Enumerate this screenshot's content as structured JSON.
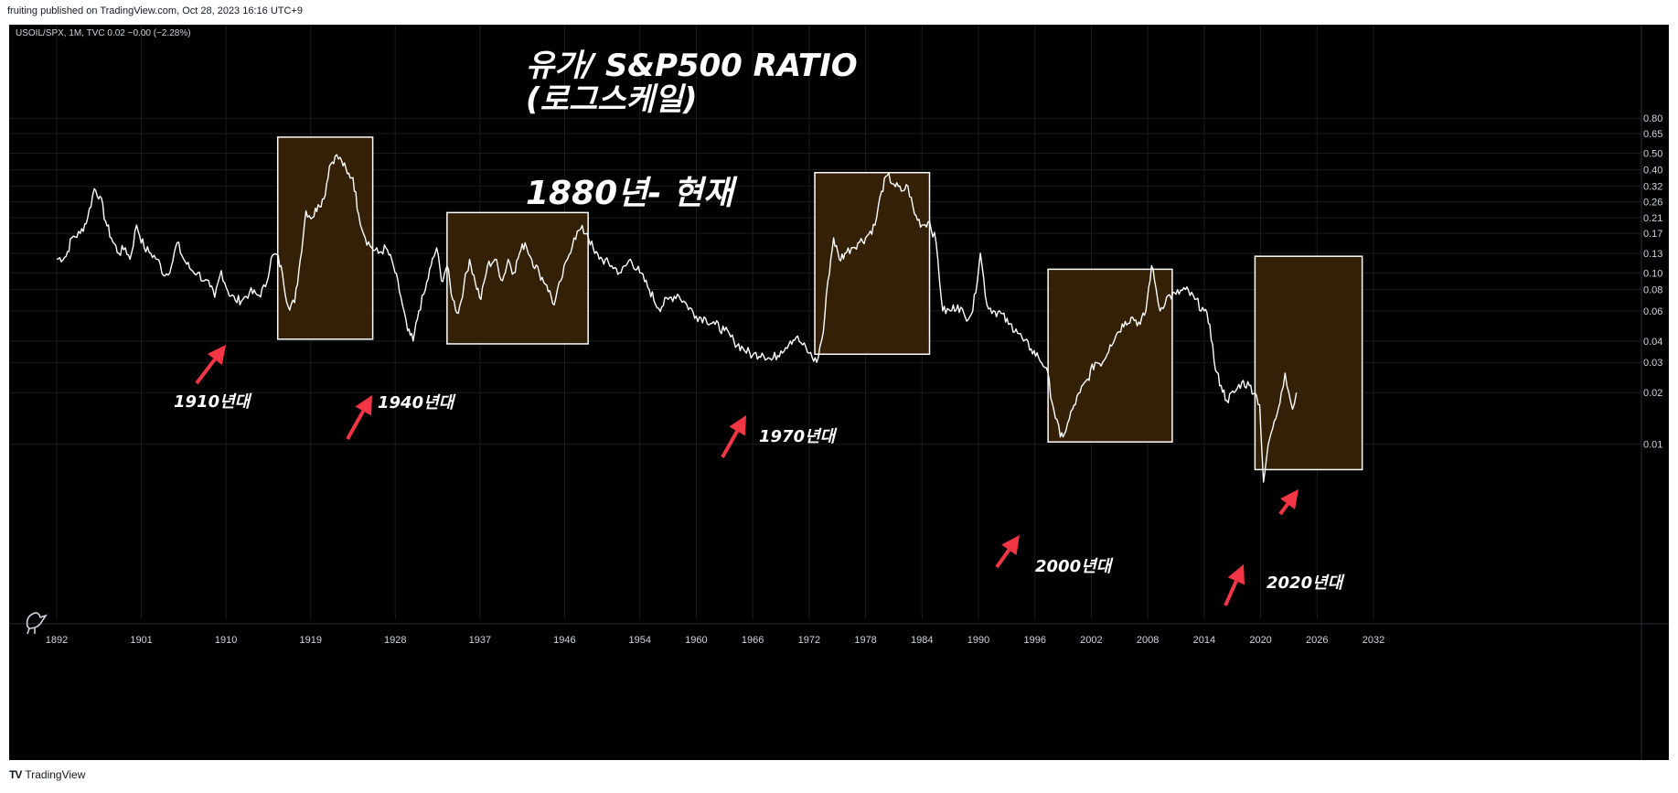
{
  "header": {
    "published": "fruiting published on TradingView.com, Oct 28, 2023 16:16 UTC+9"
  },
  "footer": {
    "brand": "TradingView",
    "logo": "TV"
  },
  "symbol_line": "USOIL/SPX, 1M, TVC  0.02  −0.00 (−2.28%)",
  "colors": {
    "background": "#000000",
    "line": "#ffffff",
    "box_fill": "#3a2408",
    "box_stroke": "#ffffff",
    "arrow": "#f23645",
    "grid": "#1c1c1c",
    "axis_text": "#d1d4dc"
  },
  "annotations": {
    "title_line1": "유가/ S&P500 RATIO",
    "title_line2": "(로그스케일)",
    "period": "1880년- 현재",
    "labels": [
      "1910년대",
      "1940년대",
      "1970년대",
      "2000년대",
      "2020년대"
    ]
  },
  "chart_data": {
    "type": "line",
    "title": "유가/ S&P500 RATIO (로그스케일)",
    "yscale": "log",
    "x_ticks": [
      "1892",
      "1901",
      "1910",
      "1919",
      "1928",
      "1937",
      "1946",
      "1954",
      "1960",
      "1966",
      "1972",
      "1978",
      "1984",
      "1990",
      "1996",
      "2002",
      "2008",
      "2014",
      "2020",
      "2026",
      "2032"
    ],
    "y_ticks": [
      "0.80",
      "0.65",
      "0.50",
      "0.40",
      "0.32",
      "0.26",
      "0.21",
      "0.17",
      "0.13",
      "0.10",
      "0.08",
      "0.06",
      "0.04",
      "0.03",
      "0.02",
      "0.01"
    ],
    "grid": true,
    "series": [
      {
        "values": [
          [
            1892.0,
            0.12
          ],
          [
            1893.0,
            0.125
          ],
          [
            1893.6,
            0.16
          ],
          [
            1894.5,
            0.17
          ],
          [
            1895.3,
            0.21
          ],
          [
            1896.0,
            0.31
          ],
          [
            1896.6,
            0.28
          ],
          [
            1897.2,
            0.2
          ],
          [
            1897.8,
            0.16
          ],
          [
            1898.6,
            0.13
          ],
          [
            1899.3,
            0.14
          ],
          [
            1899.8,
            0.12
          ],
          [
            1900.5,
            0.19
          ],
          [
            1901.3,
            0.14
          ],
          [
            1902.0,
            0.13
          ],
          [
            1902.7,
            0.12
          ],
          [
            1903.5,
            0.096
          ],
          [
            1904.2,
            0.11
          ],
          [
            1904.8,
            0.15
          ],
          [
            1905.5,
            0.12
          ],
          [
            1906.3,
            0.104
          ],
          [
            1907.0,
            0.1
          ],
          [
            1907.7,
            0.09
          ],
          [
            1908.3,
            0.083
          ],
          [
            1908.8,
            0.072
          ],
          [
            1909.5,
            0.103
          ],
          [
            1910.2,
            0.078
          ],
          [
            1911.0,
            0.069
          ],
          [
            1911.8,
            0.07
          ],
          [
            1912.5,
            0.077
          ],
          [
            1913.5,
            0.074
          ],
          [
            1914.2,
            0.083
          ],
          [
            1914.8,
            0.122
          ],
          [
            1915.4,
            0.128
          ],
          [
            1916.0,
            0.099
          ],
          [
            1916.6,
            0.064
          ],
          [
            1917.3,
            0.067
          ],
          [
            1917.9,
            0.12
          ],
          [
            1918.5,
            0.23
          ],
          [
            1919.2,
            0.21
          ],
          [
            1919.8,
            0.25
          ],
          [
            1920.4,
            0.27
          ],
          [
            1921.0,
            0.42
          ],
          [
            1921.6,
            0.48
          ],
          [
            1922.3,
            0.45
          ],
          [
            1922.9,
            0.38
          ],
          [
            1923.5,
            0.36
          ],
          [
            1924.1,
            0.22
          ],
          [
            1924.8,
            0.16
          ],
          [
            1925.5,
            0.14
          ],
          [
            1926.2,
            0.13
          ],
          [
            1927.0,
            0.14
          ],
          [
            1927.8,
            0.11
          ],
          [
            1928.6,
            0.072
          ],
          [
            1929.3,
            0.046
          ],
          [
            1929.9,
            0.04
          ],
          [
            1930.5,
            0.06
          ],
          [
            1931.2,
            0.08
          ],
          [
            1931.8,
            0.11
          ],
          [
            1932.4,
            0.14
          ],
          [
            1932.9,
            0.09
          ],
          [
            1933.5,
            0.11
          ],
          [
            1934.1,
            0.07
          ],
          [
            1934.7,
            0.058
          ],
          [
            1935.3,
            0.085
          ],
          [
            1935.9,
            0.12
          ],
          [
            1936.5,
            0.088
          ],
          [
            1937.1,
            0.07
          ],
          [
            1937.8,
            0.11
          ],
          [
            1938.6,
            0.12
          ],
          [
            1939.4,
            0.09
          ],
          [
            1940.0,
            0.12
          ],
          [
            1940.6,
            0.1
          ],
          [
            1941.2,
            0.13
          ],
          [
            1941.8,
            0.15
          ],
          [
            1942.5,
            0.12
          ],
          [
            1943.3,
            0.1
          ],
          [
            1944.1,
            0.085
          ],
          [
            1944.9,
            0.065
          ],
          [
            1945.6,
            0.09
          ],
          [
            1946.3,
            0.12
          ],
          [
            1947.0,
            0.16
          ],
          [
            1947.7,
            0.18
          ],
          [
            1948.4,
            0.17
          ],
          [
            1949.2,
            0.13
          ],
          [
            1950.0,
            0.12
          ],
          [
            1951.0,
            0.11
          ],
          [
            1952.0,
            0.1
          ],
          [
            1953.0,
            0.12
          ],
          [
            1954.0,
            0.1
          ],
          [
            1955.0,
            0.08
          ],
          [
            1956.0,
            0.062
          ],
          [
            1957.0,
            0.07
          ],
          [
            1958.0,
            0.075
          ],
          [
            1959.0,
            0.065
          ],
          [
            1960.0,
            0.056
          ],
          [
            1961.0,
            0.054
          ],
          [
            1962.0,
            0.05
          ],
          [
            1963.0,
            0.046
          ],
          [
            1964.0,
            0.04
          ],
          [
            1965.0,
            0.036
          ],
          [
            1966.0,
            0.033
          ],
          [
            1967.0,
            0.034
          ],
          [
            1968.0,
            0.031
          ],
          [
            1969.0,
            0.035
          ],
          [
            1970.0,
            0.04
          ],
          [
            1970.6,
            0.042
          ],
          [
            1971.3,
            0.038
          ],
          [
            1972.0,
            0.034
          ],
          [
            1972.8,
            0.03
          ],
          [
            1973.5,
            0.045
          ],
          [
            1974.0,
            0.09
          ],
          [
            1974.6,
            0.16
          ],
          [
            1975.2,
            0.12
          ],
          [
            1975.8,
            0.13
          ],
          [
            1976.5,
            0.14
          ],
          [
            1977.2,
            0.15
          ],
          [
            1978.0,
            0.16
          ],
          [
            1979.0,
            0.19
          ],
          [
            1979.7,
            0.3
          ],
          [
            1980.3,
            0.37
          ],
          [
            1981.0,
            0.33
          ],
          [
            1981.8,
            0.3
          ],
          [
            1982.5,
            0.32
          ],
          [
            1983.2,
            0.22
          ],
          [
            1984.0,
            0.19
          ],
          [
            1984.8,
            0.2
          ],
          [
            1985.5,
            0.15
          ],
          [
            1986.2,
            0.06
          ],
          [
            1987.0,
            0.06
          ],
          [
            1987.8,
            0.065
          ],
          [
            1988.6,
            0.055
          ],
          [
            1989.4,
            0.06
          ],
          [
            1990.2,
            0.13
          ],
          [
            1990.9,
            0.065
          ],
          [
            1991.6,
            0.06
          ],
          [
            1992.4,
            0.058
          ],
          [
            1993.2,
            0.05
          ],
          [
            1994.0,
            0.047
          ],
          [
            1994.8,
            0.04
          ],
          [
            1995.6,
            0.036
          ],
          [
            1996.4,
            0.032
          ],
          [
            1997.2,
            0.028
          ],
          [
            1998.0,
            0.016
          ],
          [
            1998.7,
            0.011
          ],
          [
            1999.3,
            0.012
          ],
          [
            2000.0,
            0.016
          ],
          [
            2000.8,
            0.02
          ],
          [
            2001.6,
            0.024
          ],
          [
            2002.4,
            0.03
          ],
          [
            2003.2,
            0.03
          ],
          [
            2004.0,
            0.038
          ],
          [
            2004.8,
            0.045
          ],
          [
            2005.6,
            0.052
          ],
          [
            2006.4,
            0.055
          ],
          [
            2007.2,
            0.05
          ],
          [
            2007.8,
            0.06
          ],
          [
            2008.4,
            0.11
          ],
          [
            2008.9,
            0.08
          ],
          [
            2009.3,
            0.06
          ],
          [
            2010.0,
            0.072
          ],
          [
            2011.0,
            0.075
          ],
          [
            2012.0,
            0.08
          ],
          [
            2013.0,
            0.07
          ],
          [
            2014.0,
            0.06
          ],
          [
            2014.6,
            0.05
          ],
          [
            2015.2,
            0.027
          ],
          [
            2015.8,
            0.022
          ],
          [
            2016.4,
            0.018
          ],
          [
            2017.2,
            0.02
          ],
          [
            2018.0,
            0.023
          ],
          [
            2018.8,
            0.022
          ],
          [
            2019.4,
            0.02
          ],
          [
            2019.9,
            0.017
          ],
          [
            2020.3,
            0.006
          ],
          [
            2020.6,
            0.008
          ],
          [
            2021.0,
            0.011
          ],
          [
            2021.6,
            0.014
          ],
          [
            2022.2,
            0.02
          ],
          [
            2022.6,
            0.026
          ],
          [
            2023.0,
            0.02
          ],
          [
            2023.4,
            0.016
          ],
          [
            2023.8,
            0.02
          ]
        ]
      }
    ],
    "highlight_periods": [
      {
        "label": "1910년대",
        "x_start": 1915.5,
        "x_end": 1925.6,
        "y_high": 0.62,
        "y_low": 0.041
      },
      {
        "label": "1940년대",
        "x_start": 1933.5,
        "x_end": 1948.5,
        "y_high": 0.225,
        "y_low": 0.0385
      },
      {
        "label": "1970년대",
        "x_start": 1972.6,
        "x_end": 1984.8,
        "y_high": 0.385,
        "y_low": 0.0335
      },
      {
        "label": "2000년대",
        "x_start": 1997.4,
        "x_end": 2010.6,
        "y_high": 0.105,
        "y_low": 0.0103
      },
      {
        "label": "2020년대",
        "x_start": 2019.4,
        "x_end": 2030.8,
        "y_high": 0.125,
        "y_low": 0.0071
      }
    ]
  }
}
